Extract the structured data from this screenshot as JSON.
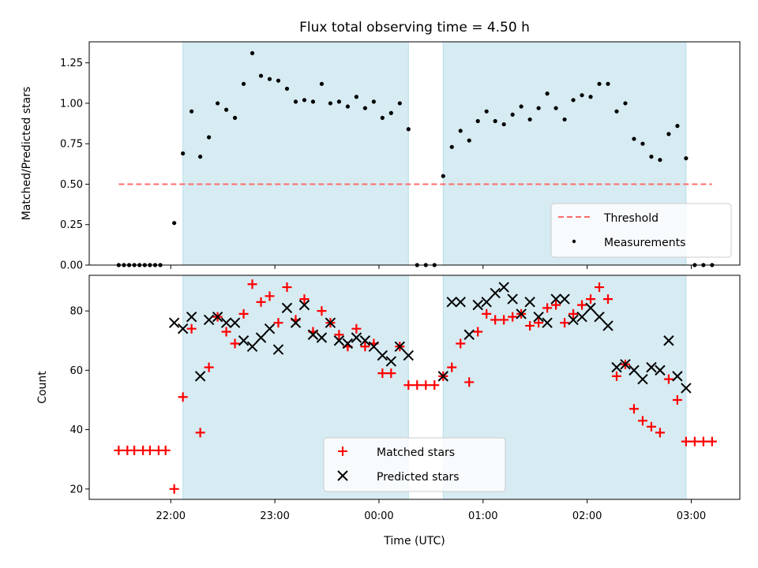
{
  "chart_data": {
    "title": "Flux total observing time = 4.50 h",
    "xlabel": "Time (UTC)",
    "x_ticks": [
      "22:00",
      "23:00",
      "00:00",
      "01:00",
      "02:00",
      "03:00"
    ],
    "shaded_intervals": [
      [
        "22:07",
        "00:17"
      ],
      [
        "00:37",
        "02:57"
      ]
    ],
    "shade_color": "#add8e6",
    "panels": [
      {
        "type": "scatter",
        "ylabel": "Matched/Predicted stars",
        "ylim": [
          0,
          1.38
        ],
        "y_ticks": [
          "0.00",
          "0.25",
          "0.50",
          "0.75",
          "1.00",
          "1.25"
        ],
        "threshold": {
          "name": "Threshold",
          "y": 0.5,
          "x_start": "21:30",
          "x_end": "03:12",
          "color": "#ff6b6b"
        },
        "legend": [
          "Threshold",
          "Measurements"
        ],
        "legend_position": "lower right",
        "series": [
          {
            "name": "Measurements",
            "color": "#000000",
            "marker": "dot",
            "x": [
              "21:30",
              "21:33",
              "21:36",
              "21:39",
              "21:42",
              "21:45",
              "21:48",
              "21:51",
              "21:54",
              "22:02",
              "22:07",
              "22:12",
              "22:17",
              "22:22",
              "22:27",
              "22:32",
              "22:37",
              "22:42",
              "22:47",
              "22:52",
              "22:57",
              "23:02",
              "23:07",
              "23:12",
              "23:17",
              "23:22",
              "23:27",
              "23:32",
              "23:37",
              "23:42",
              "23:47",
              "23:52",
              "23:57",
              "00:02",
              "00:07",
              "00:12",
              "00:17",
              "00:22",
              "00:27",
              "00:32",
              "00:37",
              "00:42",
              "00:47",
              "00:52",
              "00:57",
              "01:02",
              "01:07",
              "01:12",
              "01:17",
              "01:22",
              "01:27",
              "01:32",
              "01:37",
              "01:42",
              "01:47",
              "01:52",
              "01:57",
              "02:02",
              "02:07",
              "02:12",
              "02:17",
              "02:22",
              "02:27",
              "02:32",
              "02:37",
              "02:42",
              "02:47",
              "02:52",
              "02:57",
              "03:02",
              "03:07",
              "03:12"
            ],
            "y": [
              0,
              0,
              0,
              0,
              0,
              0,
              0,
              0,
              0,
              0.26,
              0.69,
              0.95,
              0.67,
              0.79,
              1.0,
              0.96,
              0.91,
              1.12,
              1.31,
              1.17,
              1.15,
              1.14,
              1.09,
              1.01,
              1.02,
              1.01,
              1.12,
              1.0,
              1.01,
              0.98,
              1.04,
              0.97,
              1.01,
              0.91,
              0.94,
              1.0,
              0.84,
              0,
              0,
              0,
              0.55,
              0.73,
              0.83,
              0.77,
              0.89,
              0.95,
              0.89,
              0.87,
              0.93,
              0.98,
              0.9,
              0.97,
              1.06,
              0.97,
              0.9,
              1.02,
              1.05,
              1.04,
              1.12,
              1.12,
              0.95,
              1.0,
              0.78,
              0.75,
              0.67,
              0.65,
              0.81,
              0.86,
              0.66,
              0,
              0,
              0
            ]
          }
        ]
      },
      {
        "type": "scatter",
        "ylabel": "Count",
        "ylim": [
          16.5,
          92
        ],
        "y_ticks": [
          "20",
          "40",
          "60",
          "80"
        ],
        "legend": [
          "Matched stars",
          "Predicted stars"
        ],
        "legend_position": "lower center",
        "series": [
          {
            "name": "Matched stars",
            "color": "#ff0000",
            "marker": "plus",
            "x": [
              "21:30",
              "21:35",
              "21:39",
              "21:44",
              "21:48",
              "21:53",
              "21:57",
              "22:02",
              "22:07",
              "22:12",
              "22:17",
              "22:22",
              "22:27",
              "22:32",
              "22:37",
              "22:42",
              "22:47",
              "22:52",
              "22:57",
              "23:02",
              "23:07",
              "23:12",
              "23:17",
              "23:22",
              "23:27",
              "23:32",
              "23:37",
              "23:42",
              "23:47",
              "23:52",
              "23:57",
              "00:02",
              "00:07",
              "00:12",
              "00:17",
              "00:22",
              "00:27",
              "00:32",
              "00:37",
              "00:42",
              "00:47",
              "00:52",
              "00:57",
              "01:02",
              "01:07",
              "01:12",
              "01:17",
              "01:22",
              "01:27",
              "01:32",
              "01:37",
              "01:42",
              "01:47",
              "01:52",
              "01:57",
              "02:02",
              "02:07",
              "02:12",
              "02:17",
              "02:22",
              "02:27",
              "02:32",
              "02:37",
              "02:42",
              "02:47",
              "02:52",
              "02:57",
              "03:02",
              "03:07",
              "03:12"
            ],
            "y": [
              33,
              33,
              33,
              33,
              33,
              33,
              33,
              20,
              51,
              74,
              39,
              61,
              78,
              73,
              69,
              79,
              89,
              83,
              85,
              76,
              88,
              77,
              84,
              73,
              80,
              76,
              72,
              68,
              74,
              68,
              69,
              59,
              59,
              68,
              55,
              55,
              55,
              55,
              58,
              61,
              69,
              56,
              73,
              79,
              77,
              77,
              78,
              79,
              75,
              76,
              81,
              82,
              76,
              79,
              82,
              84,
              88,
              84,
              58,
              62,
              47,
              43,
              41,
              39,
              57,
              50,
              36,
              36,
              36,
              36
            ]
          },
          {
            "name": "Predicted stars",
            "color": "#000000",
            "marker": "x",
            "x": [
              "22:02",
              "22:07",
              "22:12",
              "22:17",
              "22:22",
              "22:27",
              "22:32",
              "22:37",
              "22:42",
              "22:47",
              "22:52",
              "22:57",
              "23:02",
              "23:07",
              "23:12",
              "23:17",
              "23:22",
              "23:27",
              "23:32",
              "23:37",
              "23:42",
              "23:47",
              "23:52",
              "23:57",
              "00:02",
              "00:07",
              "00:12",
              "00:17",
              "00:37",
              "00:42",
              "00:47",
              "00:52",
              "00:57",
              "01:02",
              "01:07",
              "01:12",
              "01:17",
              "01:22",
              "01:27",
              "01:32",
              "01:37",
              "01:42",
              "01:47",
              "01:52",
              "01:57",
              "02:02",
              "02:07",
              "02:12",
              "02:17",
              "02:22",
              "02:27",
              "02:32",
              "02:37",
              "02:42",
              "02:47",
              "02:52",
              "02:57"
            ],
            "y": [
              76,
              74,
              78,
              58,
              77,
              78,
              76,
              76,
              70,
              68,
              71,
              74,
              67,
              81,
              76,
              82,
              72,
              71,
              76,
              70,
              69,
              71,
              70,
              68,
              65,
              63,
              68,
              65,
              58,
              83,
              83,
              72,
              82,
              83,
              86,
              88,
              84,
              79,
              83,
              78,
              76,
              84,
              84,
              77,
              78,
              81,
              78,
              75,
              61,
              62,
              60,
              57,
              61,
              60,
              70,
              58,
              54
            ]
          }
        ]
      }
    ]
  }
}
